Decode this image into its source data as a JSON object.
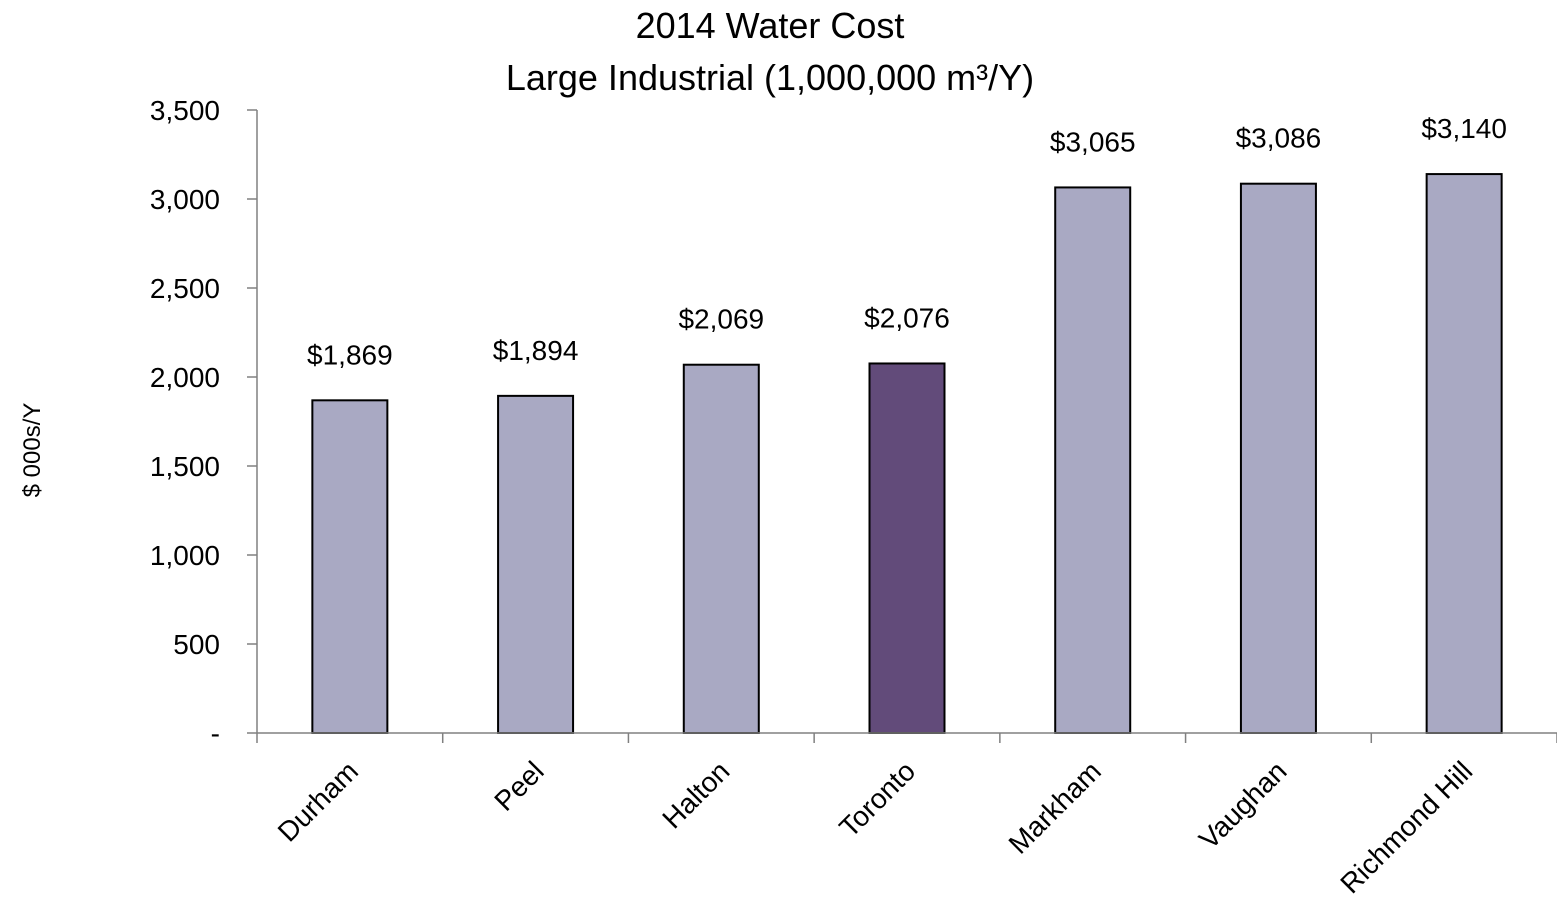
{
  "chart_data": {
    "type": "bar",
    "title": "2014  Water Cost",
    "subtitle": "Large Industrial (1,000,000 m³/Y)",
    "xlabel": "",
    "ylabel": "$ 000s/Y",
    "categories": [
      "Durham",
      "Peel",
      "Halton",
      "Toronto",
      "Markham",
      "Vaughan",
      "Richmond Hill"
    ],
    "values": [
      1869,
      1894,
      2069,
      2076,
      3065,
      3086,
      3140
    ],
    "data_labels": [
      "$1,869",
      "$1,894",
      "$2,069",
      "$2,076",
      "$3,065",
      "$3,086",
      "$3,140"
    ],
    "ylim": [
      0,
      3500
    ],
    "yticks": [
      0,
      500,
      1000,
      1500,
      2000,
      2500,
      3000,
      3500
    ],
    "ytick_labels": [
      "-",
      "500",
      "1,000",
      "1,500",
      "2,000",
      "2,500",
      "3,000",
      "3,500"
    ],
    "grid": false,
    "legend": "none",
    "colors": {
      "default_bar": "#A9A9C3",
      "highlight_bar": "#624B7A",
      "highlight_category": "Toronto"
    }
  }
}
